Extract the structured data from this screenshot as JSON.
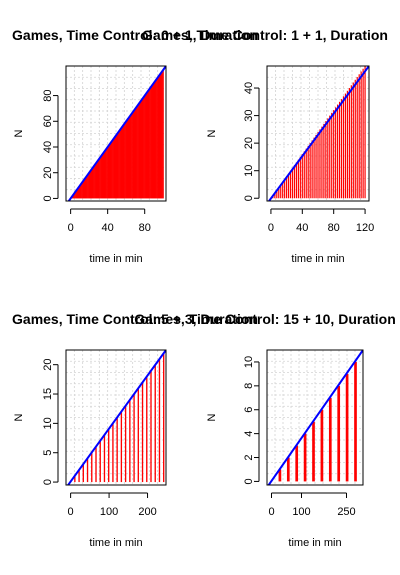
{
  "chart_data": [
    {
      "type": "bar",
      "title": "Games, Time Control: 0 + 1, Duration",
      "xlabel": "time in min",
      "ylabel": "N",
      "xlim": [
        -5,
        103
      ],
      "ylim": [
        -2,
        103
      ],
      "xticks": [
        0,
        40,
        80
      ],
      "yticks": [
        0,
        20,
        40,
        60,
        80
      ],
      "bar_color": "#ff0000",
      "line_color": "#0000ff",
      "bars": {
        "x_start": 1,
        "x_step": 1,
        "values": [
          1,
          2,
          3,
          4,
          5,
          6,
          7,
          8,
          9,
          10,
          11,
          12,
          13,
          14,
          15,
          16,
          17,
          18,
          19,
          20,
          21,
          22,
          23,
          24,
          25,
          26,
          27,
          28,
          29,
          30,
          31,
          32,
          33,
          34,
          35,
          36,
          37,
          38,
          39,
          40,
          41,
          42,
          43,
          44,
          45,
          46,
          47,
          48,
          49,
          50,
          51,
          52,
          53,
          54,
          55,
          56,
          57,
          58,
          59,
          60,
          61,
          62,
          63,
          64,
          65,
          66,
          67,
          68,
          69,
          70,
          71,
          72,
          73,
          74,
          75,
          76,
          77,
          78,
          79,
          80,
          81,
          82,
          83,
          84,
          85,
          86,
          87,
          88,
          89,
          90,
          91,
          92,
          93,
          94,
          95,
          96,
          97,
          98,
          99,
          100
        ]
      },
      "reference_line": {
        "x": [
          -5,
          103
        ],
        "y": [
          -5,
          103
        ]
      }
    },
    {
      "type": "bar",
      "title": "Games, Time Control: 1 + 1, Duration",
      "xlabel": "time in min",
      "ylabel": "N",
      "xlim": [
        -5,
        125
      ],
      "ylim": [
        -1,
        48
      ],
      "xticks": [
        0,
        40,
        80,
        120
      ],
      "yticks": [
        0,
        10,
        20,
        30,
        40
      ],
      "bar_color": "#ff0000",
      "line_color": "#0000ff",
      "bars": {
        "x_start": 2.5,
        "x_step": 2.5,
        "values": [
          1,
          2,
          3,
          4,
          5,
          6,
          7,
          8,
          9,
          10,
          11,
          12,
          13,
          14,
          15,
          16,
          17,
          18,
          19,
          20,
          21,
          22,
          23,
          24,
          25,
          26,
          27,
          28,
          29,
          30,
          31,
          32,
          33,
          34,
          35,
          36,
          37,
          38,
          39,
          40,
          41,
          42,
          43,
          44,
          45,
          46,
          47,
          48
        ]
      },
      "reference_line": {
        "x": [
          -5,
          125
        ],
        "y": [
          -2,
          48
        ]
      }
    },
    {
      "type": "bar",
      "title": "Games, Time Control: 5 + 3, Duration",
      "xlabel": "time in min",
      "ylabel": "N",
      "xlim": [
        -12,
        248
      ],
      "ylim": [
        -0.5,
        22.5
      ],
      "xticks": [
        0,
        100,
        200
      ],
      "yticks": [
        0,
        5,
        10,
        15,
        20
      ],
      "bar_color": "#ff0000",
      "line_color": "#0000ff",
      "bars": {
        "x_start": 11,
        "x_step": 11,
        "values": [
          1,
          2,
          3,
          4,
          5,
          6,
          7,
          8,
          9,
          10,
          11,
          12,
          13,
          14,
          15,
          16,
          17,
          18,
          19,
          20,
          21,
          22
        ]
      },
      "reference_line": {
        "x": [
          -12,
          248
        ],
        "y": [
          -1,
          22.5
        ]
      }
    },
    {
      "type": "bar",
      "title": "Games, Time Control: 15 + 10, Duration",
      "xlabel": "time in min",
      "ylabel": "N",
      "xlim": [
        -15,
        305
      ],
      "ylim": [
        -0.3,
        11
      ],
      "xticks": [
        0,
        100,
        250
      ],
      "yticks": [
        0,
        2,
        4,
        6,
        8,
        10
      ],
      "bar_color": "#ff0000",
      "line_color": "#0000ff",
      "bars": {
        "x_start": 28,
        "x_step": 28,
        "values": [
          1,
          2,
          3,
          4,
          5,
          6,
          7,
          8,
          9,
          10,
          11
        ]
      },
      "reference_line": {
        "x": [
          -15,
          305
        ],
        "y": [
          -0.5,
          11
        ]
      }
    }
  ]
}
